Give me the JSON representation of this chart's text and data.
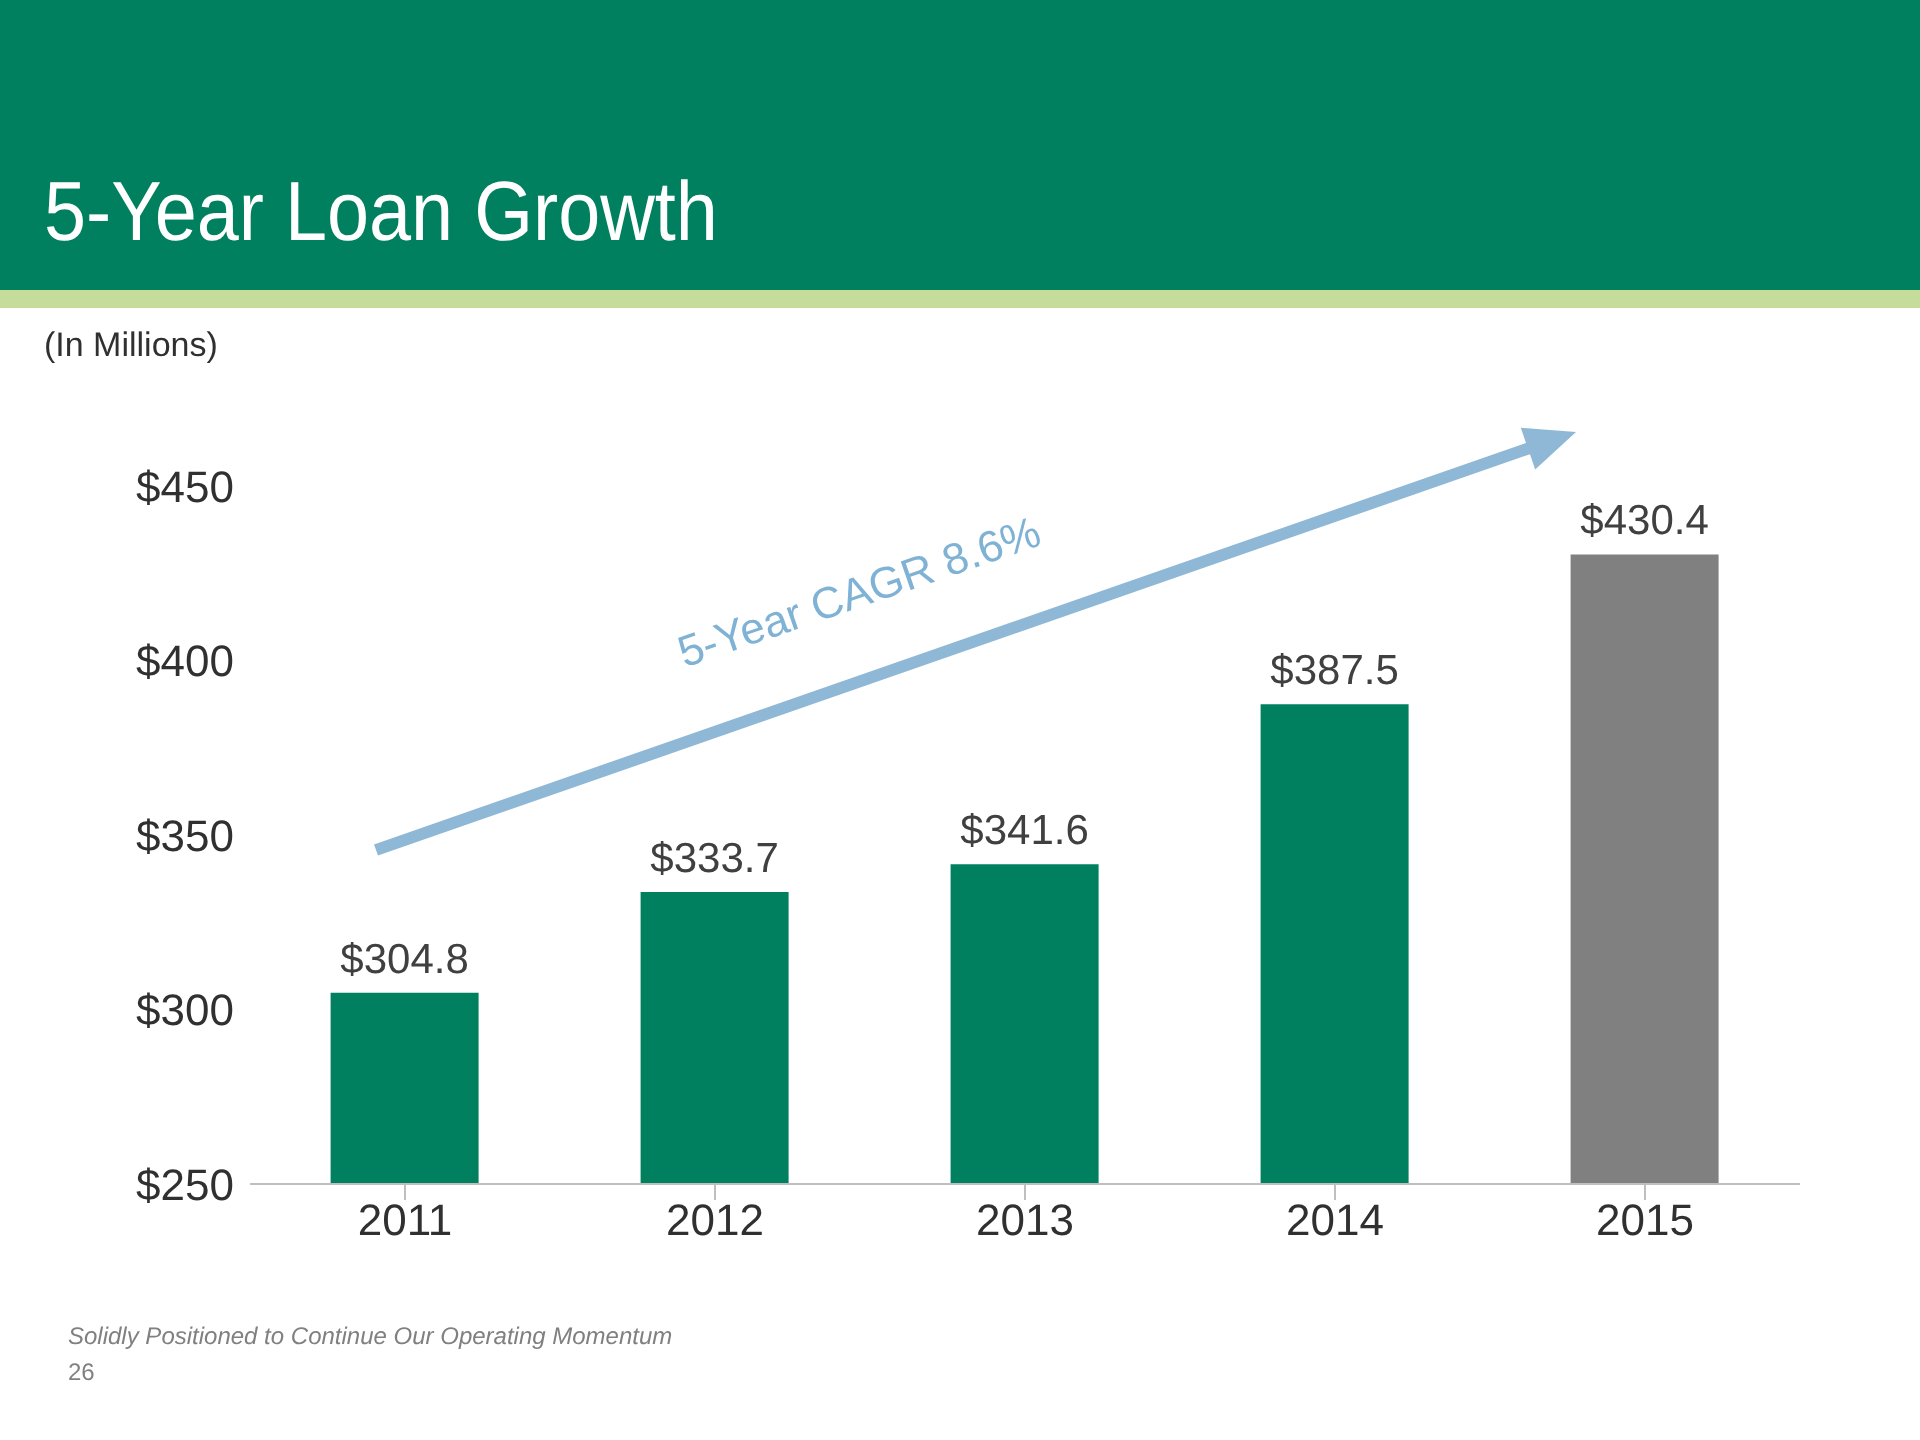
{
  "chart_data": {
    "type": "bar",
    "title": "5-Year Loan Growth",
    "subtitle": "(In Millions)",
    "categories": [
      "2011",
      "2012",
      "2013",
      "2014",
      "2015"
    ],
    "values": [
      304.8,
      333.7,
      341.6,
      387.5,
      430.4
    ],
    "colors": [
      "#00805f",
      "#00805f",
      "#00805f",
      "#00805f",
      "#808080"
    ],
    "value_labels": [
      "$304.8",
      "$333.7",
      "$341.6",
      "$387.5",
      "$430.4"
    ],
    "ylim": [
      250,
      450
    ],
    "yticks": [
      {
        "value": 250,
        "label": "$250"
      },
      {
        "value": 300,
        "label": "$300"
      },
      {
        "value": 350,
        "label": "$350"
      },
      {
        "value": 400,
        "label": "$400"
      },
      {
        "value": 450,
        "label": "$450"
      }
    ],
    "grid": false,
    "legend": false,
    "annotations": [
      "5-Year CAGR 8.6%",
      "Solidly Positioned to Continue Our Operating Momentum",
      "26"
    ]
  }
}
